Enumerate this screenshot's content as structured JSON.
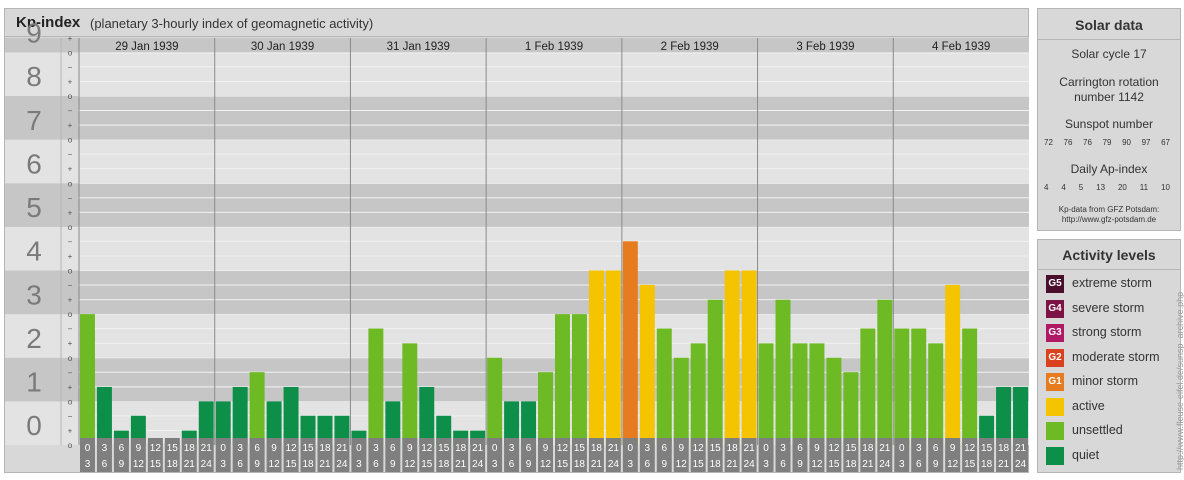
{
  "header": {
    "title": "Kp-index",
    "subtitle": "(planetary 3-hourly index of geomagnetic activity)"
  },
  "chart_data": {
    "type": "bar",
    "y_axis_ticks": [
      "0",
      "1",
      "2",
      "3",
      "4",
      "5",
      "6",
      "7",
      "8",
      "9"
    ],
    "thirds_marks": [
      "+",
      "o",
      "−"
    ],
    "ylim": [
      0,
      9.33
    ],
    "days": [
      {
        "label": "29 Jan 1939",
        "values": [
          3.0,
          1.33,
          0.33,
          0.67,
          0.0,
          0.0,
          0.33,
          1.0
        ]
      },
      {
        "label": "30 Jan 1939",
        "values": [
          1.0,
          1.33,
          1.67,
          1.0,
          1.33,
          0.67,
          0.67,
          0.67
        ]
      },
      {
        "label": "31 Jan 1939",
        "values": [
          0.33,
          2.67,
          1.0,
          2.33,
          1.33,
          0.67,
          0.33,
          0.33
        ]
      },
      {
        "label": "1 Feb 1939",
        "values": [
          2.0,
          1.0,
          1.0,
          1.67,
          3.0,
          3.0,
          4.0,
          4.0
        ]
      },
      {
        "label": "2 Feb 1939",
        "values": [
          4.67,
          3.67,
          2.67,
          2.0,
          2.33,
          3.33,
          4.0,
          4.0
        ]
      },
      {
        "label": "3 Feb 1939",
        "values": [
          2.33,
          3.33,
          2.33,
          2.33,
          2.0,
          1.67,
          2.67,
          3.33
        ]
      },
      {
        "label": "4 Feb 1939",
        "values": [
          2.67,
          2.67,
          2.33,
          3.67,
          2.67,
          0.67,
          1.33,
          1.33
        ]
      }
    ],
    "interval_start_labels": [
      "0",
      "3",
      "6",
      "9",
      "12",
      "15",
      "18",
      "21"
    ],
    "interval_end_labels": [
      "3",
      "6",
      "9",
      "12",
      "15",
      "18",
      "21",
      "24"
    ],
    "level_colors": {
      "quiet": "#0d8f4a",
      "unsettled": "#6eba25",
      "active": "#f5c400",
      "minor_storm": "#e67c1f"
    }
  },
  "solar": {
    "title": "Solar data",
    "cycle": "Solar cycle 17",
    "carrington_line1": "Carrington rotation",
    "carrington_line2": "number 1142",
    "sunspot_title": "Sunspot number",
    "sunspot_values": [
      "72",
      "76",
      "76",
      "79",
      "90",
      "97",
      "67"
    ],
    "ap_title": "Daily Ap-index",
    "ap_values": [
      "4",
      "4",
      "5",
      "13",
      "20",
      "11",
      "10"
    ],
    "credit_line1": "Kp-data from GFZ Potsdam:",
    "credit_line2": "http://www.gfz-potsdam.de"
  },
  "activity": {
    "title": "Activity levels",
    "items": [
      {
        "code": "G5",
        "label": "extreme storm",
        "color": "#4a0f2c"
      },
      {
        "code": "G4",
        "label": "severe storm",
        "color": "#7d1245"
      },
      {
        "code": "G3",
        "label": "strong storm",
        "color": "#b01966"
      },
      {
        "code": "G2",
        "label": "moderate storm",
        "color": "#d9401e"
      },
      {
        "code": "G1",
        "label": "minor storm",
        "color": "#e67c1f"
      },
      {
        "code": "",
        "label": "active",
        "color": "#f5c400"
      },
      {
        "code": "",
        "label": "unsettled",
        "color": "#6eba25"
      },
      {
        "code": "",
        "label": "quiet",
        "color": "#0d8f4a"
      }
    ]
  },
  "watermark": "http://www.fleuse-eifel.de/sunsp_archive.php"
}
